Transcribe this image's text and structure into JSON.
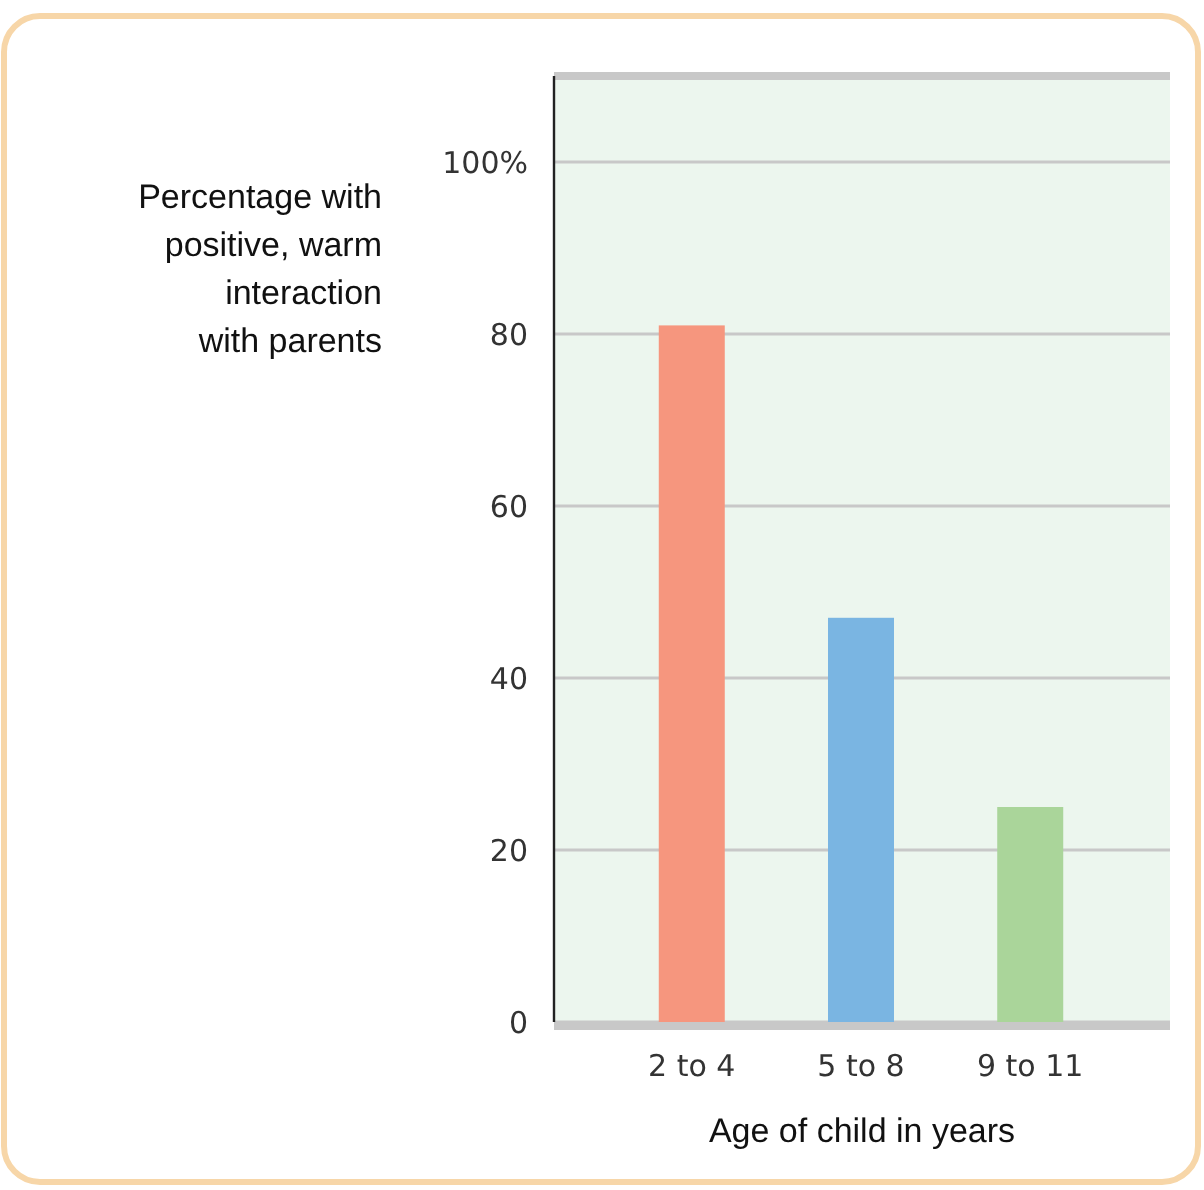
{
  "chart_data": {
    "type": "bar",
    "xlabel": "Age of child in years",
    "ylabel": "Percentage with positive, warm interaction with parents",
    "categories": [
      "2 to 4",
      "5 to 8",
      "9 to 11"
    ],
    "values": [
      81,
      47,
      25
    ],
    "colors": [
      "#f6967e",
      "#7ab5e2",
      "#aad59a"
    ],
    "ylim": [
      0,
      110
    ],
    "yticks": [
      0,
      20,
      40,
      60,
      80,
      {
        "value": 100,
        "label": "100%"
      }
    ],
    "grid": "y"
  }
}
